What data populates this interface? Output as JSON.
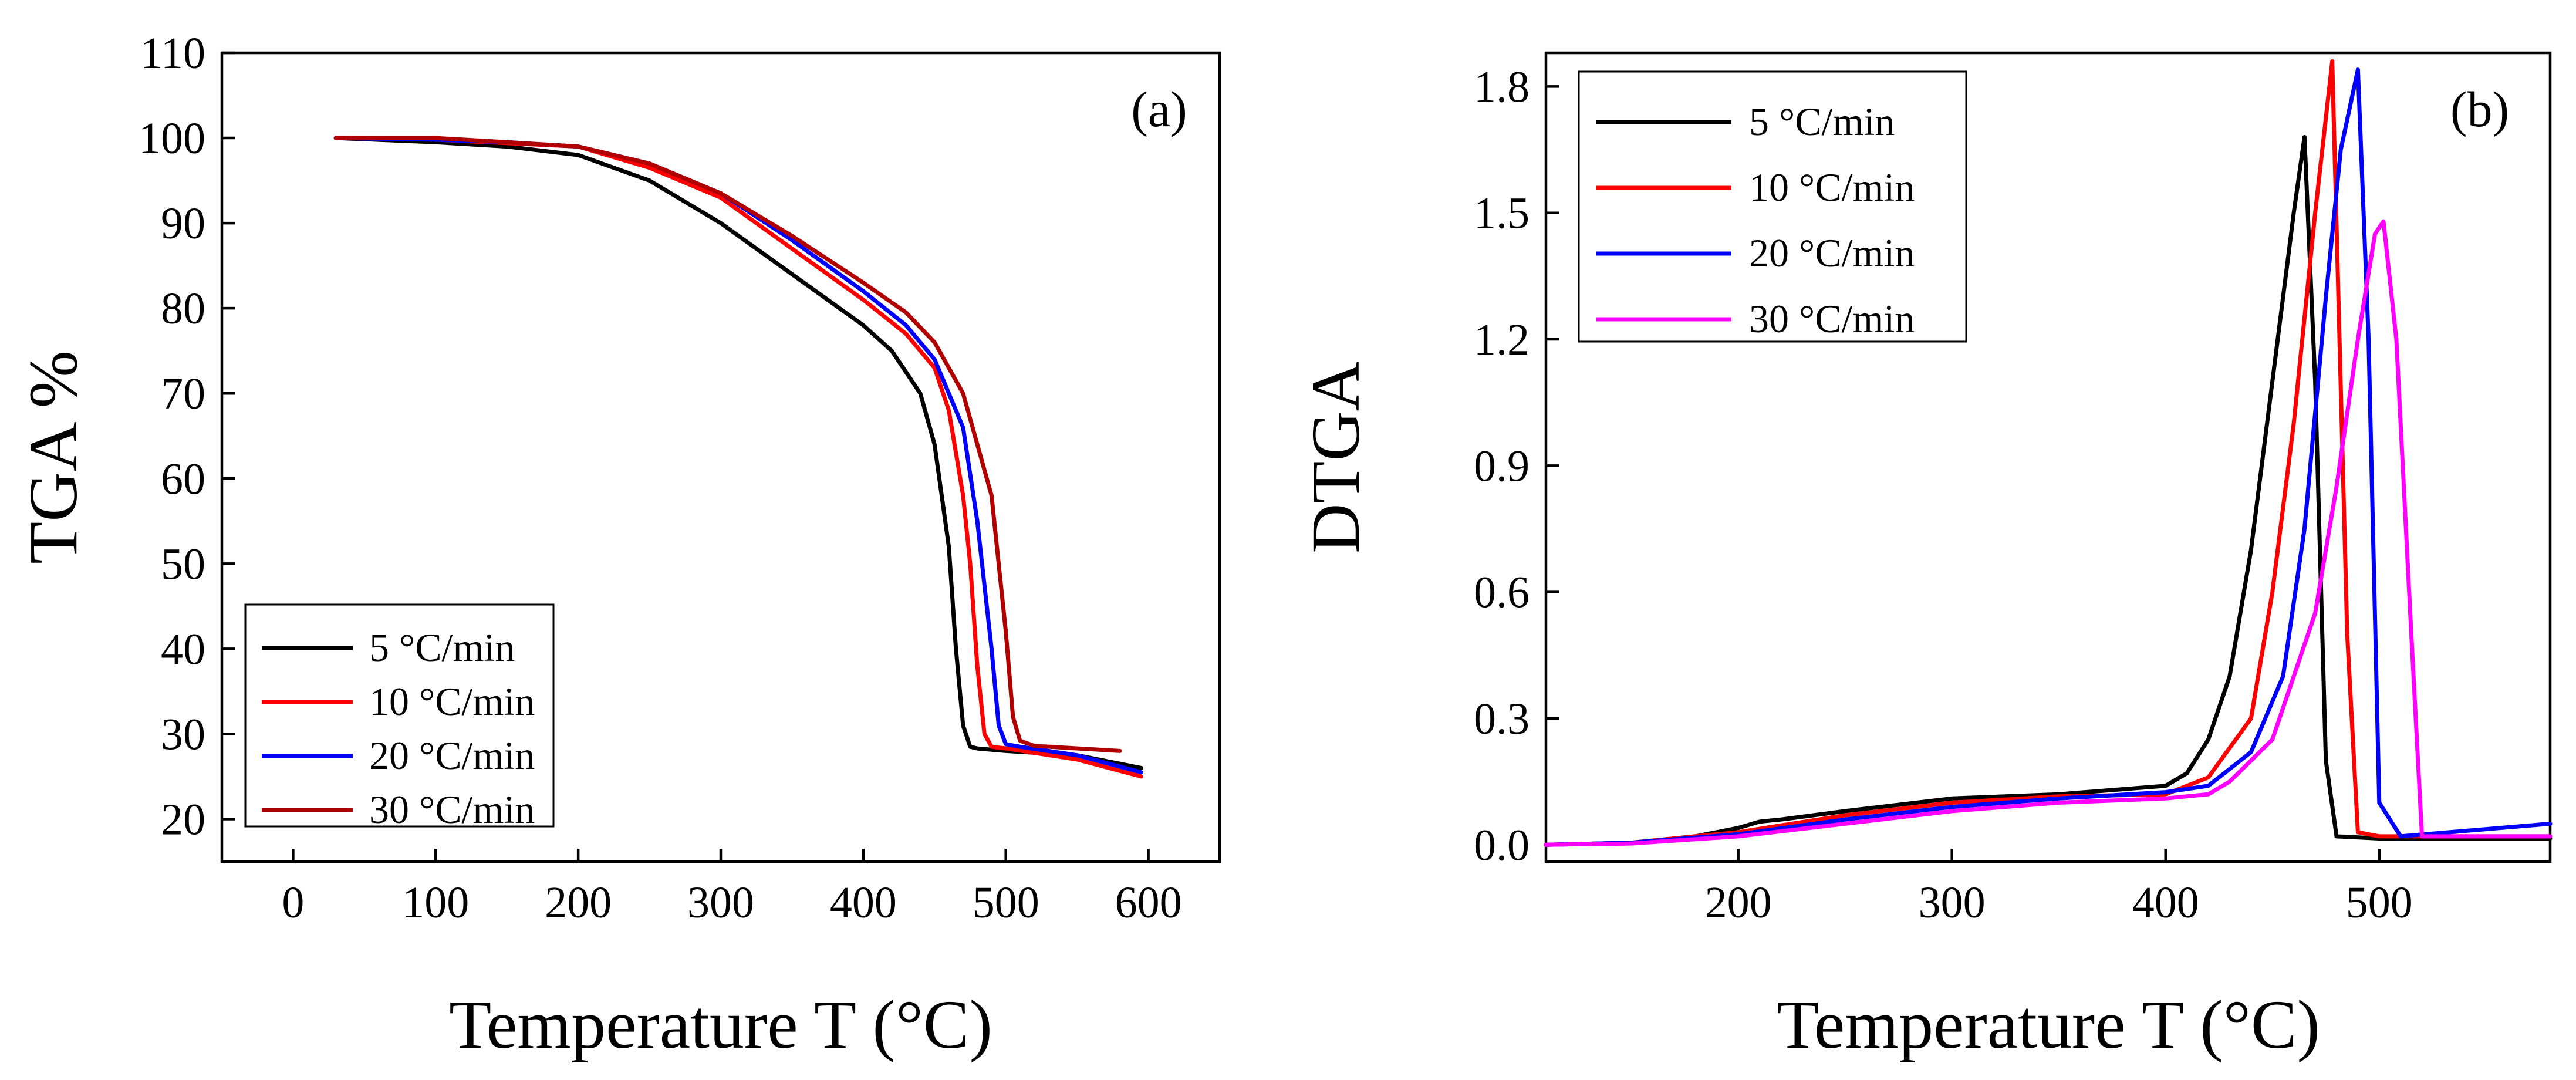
{
  "chart_data": [
    {
      "type": "line",
      "panel_label": "(a)",
      "xlabel": "Temperature T (°C)",
      "ylabel": "TGA %",
      "xlim": [
        -50,
        650
      ],
      "ylim": [
        15,
        110
      ],
      "xticks": [
        0,
        100,
        200,
        300,
        400,
        500,
        600
      ],
      "yticks": [
        20,
        30,
        40,
        50,
        60,
        70,
        80,
        90,
        100,
        110
      ],
      "legend_position": "bottom-left",
      "series": [
        {
          "name": "5 °C/min",
          "color": "#000000",
          "x": [
            30,
            100,
            150,
            200,
            250,
            300,
            350,
            400,
            420,
            440,
            450,
            460,
            465,
            470,
            475,
            480,
            500,
            550,
            595
          ],
          "y": [
            100,
            99.5,
            99,
            98,
            95,
            90,
            84,
            78,
            75,
            70,
            64,
            52,
            40,
            31,
            28.5,
            28.3,
            28,
            27.5,
            26
          ]
        },
        {
          "name": "10 °C/min",
          "color": "#ff0000",
          "x": [
            30,
            100,
            150,
            200,
            250,
            300,
            350,
            400,
            430,
            450,
            460,
            470,
            475,
            480,
            485,
            490,
            500,
            550,
            595
          ],
          "y": [
            100,
            99.8,
            99.4,
            99,
            96.5,
            93,
            87,
            81,
            77,
            73,
            68,
            58,
            50,
            38,
            30,
            28.5,
            28.3,
            27,
            25
          ]
        },
        {
          "name": "20 °C/min",
          "color": "#0000ff",
          "x": [
            30,
            100,
            150,
            200,
            250,
            300,
            350,
            400,
            430,
            450,
            470,
            480,
            490,
            495,
            500,
            510,
            550,
            595
          ],
          "y": [
            100,
            99.8,
            99.5,
            99,
            97,
            93.5,
            88,
            82,
            78,
            74,
            66,
            55,
            40,
            31,
            28.8,
            28.5,
            27.5,
            25.5
          ]
        },
        {
          "name": "30 °C/min",
          "color": "#b00000",
          "x": [
            30,
            100,
            150,
            200,
            250,
            300,
            350,
            400,
            430,
            450,
            470,
            490,
            500,
            505,
            510,
            520,
            580
          ],
          "y": [
            100,
            100,
            99.5,
            99,
            97,
            93.5,
            88.5,
            83,
            79.5,
            76,
            70,
            58,
            42,
            32,
            29.2,
            28.6,
            28
          ]
        }
      ]
    },
    {
      "type": "line",
      "panel_label": "(b)",
      "xlabel": "Temperature T (°C)",
      "ylabel": "DTGA",
      "xlim": [
        110,
        580
      ],
      "ylim": [
        -0.04,
        1.88
      ],
      "xticks": [
        200,
        300,
        400,
        500
      ],
      "yticks": [
        "0.0",
        "0.3",
        "0.6",
        "0.9",
        "1.2",
        "1.5",
        "1.8"
      ],
      "legend_position": "top-left",
      "series": [
        {
          "name": "5 °C/min",
          "color": "#000000",
          "x": [
            110,
            150,
            180,
            200,
            210,
            220,
            250,
            300,
            350,
            400,
            410,
            420,
            430,
            440,
            450,
            460,
            465,
            470,
            475,
            480,
            500,
            580
          ],
          "y": [
            0,
            0.005,
            0.02,
            0.04,
            0.055,
            0.06,
            0.08,
            0.11,
            0.12,
            0.14,
            0.17,
            0.25,
            0.4,
            0.7,
            1.1,
            1.5,
            1.68,
            1.1,
            0.2,
            0.02,
            0.015,
            0.015
          ]
        },
        {
          "name": "10 °C/min",
          "color": "#ff0000",
          "x": [
            110,
            150,
            200,
            250,
            300,
            350,
            400,
            420,
            440,
            450,
            460,
            470,
            478,
            485,
            490,
            500,
            580
          ],
          "y": [
            0,
            0.005,
            0.03,
            0.07,
            0.1,
            0.115,
            0.12,
            0.16,
            0.3,
            0.6,
            1.0,
            1.5,
            1.86,
            0.5,
            0.03,
            0.02,
            0.02
          ]
        },
        {
          "name": "20 °C/min",
          "color": "#0000ff",
          "x": [
            110,
            150,
            200,
            250,
            300,
            350,
            400,
            420,
            440,
            455,
            465,
            475,
            482,
            490,
            495,
            500,
            510,
            580
          ],
          "y": [
            0,
            0.005,
            0.025,
            0.06,
            0.09,
            0.11,
            0.125,
            0.14,
            0.22,
            0.4,
            0.75,
            1.3,
            1.65,
            1.84,
            1.2,
            0.1,
            0.02,
            0.05
          ]
        },
        {
          "name": "30 °C/min",
          "color": "#ff00ff",
          "x": [
            110,
            150,
            200,
            250,
            300,
            350,
            400,
            420,
            430,
            450,
            470,
            480,
            490,
            498,
            502,
            508,
            515,
            520,
            580
          ],
          "y": [
            0,
            0.003,
            0.02,
            0.05,
            0.08,
            0.1,
            0.11,
            0.12,
            0.15,
            0.25,
            0.55,
            0.85,
            1.2,
            1.45,
            1.48,
            1.2,
            0.5,
            0.02,
            0.02
          ]
        }
      ]
    }
  ]
}
